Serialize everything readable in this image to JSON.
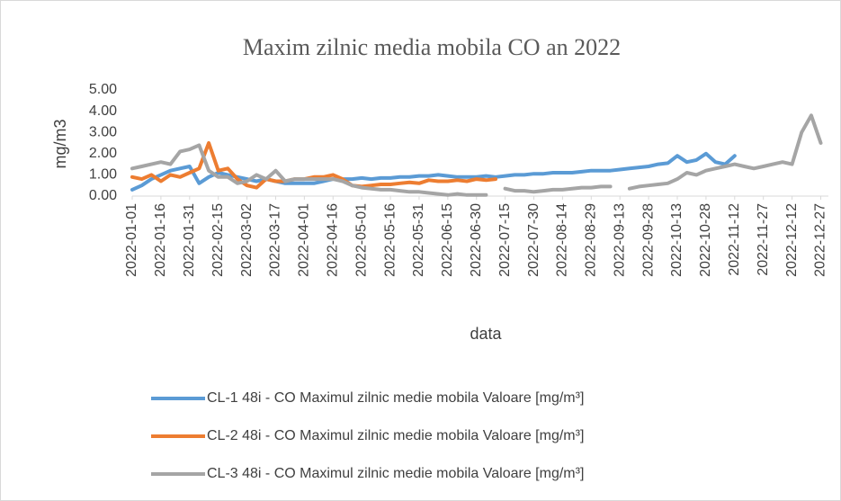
{
  "chart_data": {
    "type": "line",
    "title": "Maxim zilnic media mobila CO an 2022",
    "x_label": "data",
    "y_label": "mg/m3",
    "x": [
      "2022-01-01",
      "2022-01-06",
      "2022-01-11",
      "2022-01-16",
      "2022-01-21",
      "2022-01-26",
      "2022-01-31",
      "2022-02-05",
      "2022-02-10",
      "2022-02-15",
      "2022-02-20",
      "2022-02-25",
      "2022-03-02",
      "2022-03-07",
      "2022-03-12",
      "2022-03-17",
      "2022-03-22",
      "2022-03-27",
      "2022-04-01",
      "2022-04-06",
      "2022-04-11",
      "2022-04-16",
      "2022-04-21",
      "2022-04-26",
      "2022-05-01",
      "2022-05-06",
      "2022-05-11",
      "2022-05-16",
      "2022-05-21",
      "2022-05-26",
      "2022-05-31",
      "2022-06-05",
      "2022-06-10",
      "2022-06-15",
      "2022-06-20",
      "2022-06-25",
      "2022-06-30",
      "2022-07-05",
      "2022-07-10",
      "2022-07-15",
      "2022-07-20",
      "2022-07-25",
      "2022-07-30",
      "2022-08-04",
      "2022-08-09",
      "2022-08-14",
      "2022-08-19",
      "2022-08-24",
      "2022-08-29",
      "2022-09-03",
      "2022-09-08",
      "2022-09-13",
      "2022-09-18",
      "2022-09-23",
      "2022-09-28",
      "2022-10-03",
      "2022-10-08",
      "2022-10-13",
      "2022-10-18",
      "2022-10-23",
      "2022-10-28",
      "2022-11-02",
      "2022-11-07",
      "2022-11-12",
      "2022-11-17",
      "2022-11-22",
      "2022-11-27",
      "2022-12-02",
      "2022-12-07",
      "2022-12-12",
      "2022-12-17",
      "2022-12-22",
      "2022-12-27"
    ],
    "series": [
      {
        "name": "CL-1 48i - CO Maximul zilnic medie mobila Valoare [mg/m³]",
        "color": "#5b9bd5",
        "values": [
          0.3,
          0.5,
          0.8,
          1.0,
          1.2,
          1.3,
          1.4,
          0.6,
          0.9,
          1.1,
          1.0,
          0.9,
          0.8,
          0.7,
          0.8,
          0.7,
          0.6,
          0.6,
          0.6,
          0.6,
          0.7,
          0.8,
          0.8,
          0.8,
          0.85,
          0.8,
          0.85,
          0.85,
          0.9,
          0.9,
          0.95,
          0.95,
          1.0,
          0.95,
          0.9,
          0.9,
          0.9,
          0.95,
          0.9,
          0.95,
          1.0,
          1.0,
          1.05,
          1.05,
          1.1,
          1.1,
          1.1,
          1.15,
          1.2,
          1.2,
          1.2,
          1.25,
          1.3,
          1.35,
          1.4,
          1.5,
          1.55,
          1.9,
          1.6,
          1.7,
          2.0,
          1.6,
          1.5,
          1.9,
          null,
          null,
          null,
          null,
          null,
          null,
          null,
          null,
          null
        ]
      },
      {
        "name": "CL-2 48i - CO Maximul zilnic medie mobila Valoare [mg/m³]",
        "color": "#ed7d31",
        "values": [
          0.9,
          0.8,
          1.0,
          0.7,
          1.0,
          0.9,
          1.1,
          1.3,
          2.5,
          1.2,
          1.3,
          0.8,
          0.5,
          0.4,
          0.8,
          0.7,
          0.7,
          0.8,
          0.8,
          0.9,
          0.9,
          1.0,
          0.8,
          0.5,
          0.45,
          0.5,
          0.55,
          0.55,
          0.6,
          0.65,
          0.6,
          0.75,
          0.7,
          0.7,
          0.75,
          0.7,
          0.8,
          0.75,
          0.8,
          null,
          null,
          null,
          null,
          null,
          null,
          null,
          null,
          null,
          null,
          null,
          null,
          null,
          null,
          null,
          null,
          null,
          null,
          null,
          null,
          null,
          null,
          null,
          null,
          null,
          null,
          null,
          null,
          null,
          null,
          null,
          null,
          null,
          null
        ]
      },
      {
        "name": "CL-3 48i - CO Maximul zilnic medie mobila Valoare [mg/m³]",
        "color": "#a5a5a5",
        "values": [
          1.3,
          1.4,
          1.5,
          1.6,
          1.5,
          2.1,
          2.2,
          2.4,
          1.2,
          0.9,
          0.9,
          0.6,
          0.7,
          1.0,
          0.8,
          1.2,
          0.7,
          0.8,
          0.8,
          0.8,
          0.8,
          0.8,
          0.7,
          0.5,
          0.4,
          0.35,
          0.3,
          0.3,
          0.25,
          0.2,
          0.2,
          0.15,
          0.1,
          0.05,
          0.1,
          0.05,
          0.05,
          0.05,
          null,
          0.35,
          0.25,
          0.25,
          0.2,
          0.25,
          0.3,
          0.3,
          0.35,
          0.4,
          0.4,
          0.45,
          0.45,
          null,
          0.35,
          0.45,
          0.5,
          0.55,
          0.6,
          0.8,
          1.1,
          1.0,
          1.2,
          1.3,
          1.4,
          1.5,
          1.4,
          1.3,
          1.4,
          1.5,
          1.6,
          1.5,
          3.0,
          3.8,
          2.5
        ]
      }
    ],
    "xlim": [
      "2022-01-01",
      "2022-12-31"
    ],
    "xticks": [
      "2022-01-01",
      "2022-01-16",
      "2022-01-31",
      "2022-02-15",
      "2022-03-02",
      "2022-03-17",
      "2022-04-01",
      "2022-04-16",
      "2022-05-01",
      "2022-05-16",
      "2022-05-31",
      "2022-06-15",
      "2022-06-30",
      "2022-07-15",
      "2022-07-30",
      "2022-08-14",
      "2022-08-29",
      "2022-09-13",
      "2022-09-28",
      "2022-10-13",
      "2022-10-28",
      "2022-11-12",
      "2022-11-27",
      "2022-12-12",
      "2022-12-27"
    ],
    "ylim": [
      0,
      5
    ],
    "yticks": [
      {
        "value": 0,
        "label": "0.00"
      },
      {
        "value": 1,
        "label": "1.00"
      },
      {
        "value": 2,
        "label": "2.00"
      },
      {
        "value": 3,
        "label": "3.00"
      },
      {
        "value": 4,
        "label": "4.00"
      },
      {
        "value": 5,
        "label": "5.00"
      }
    ],
    "grid": false,
    "legend": "bottom"
  }
}
